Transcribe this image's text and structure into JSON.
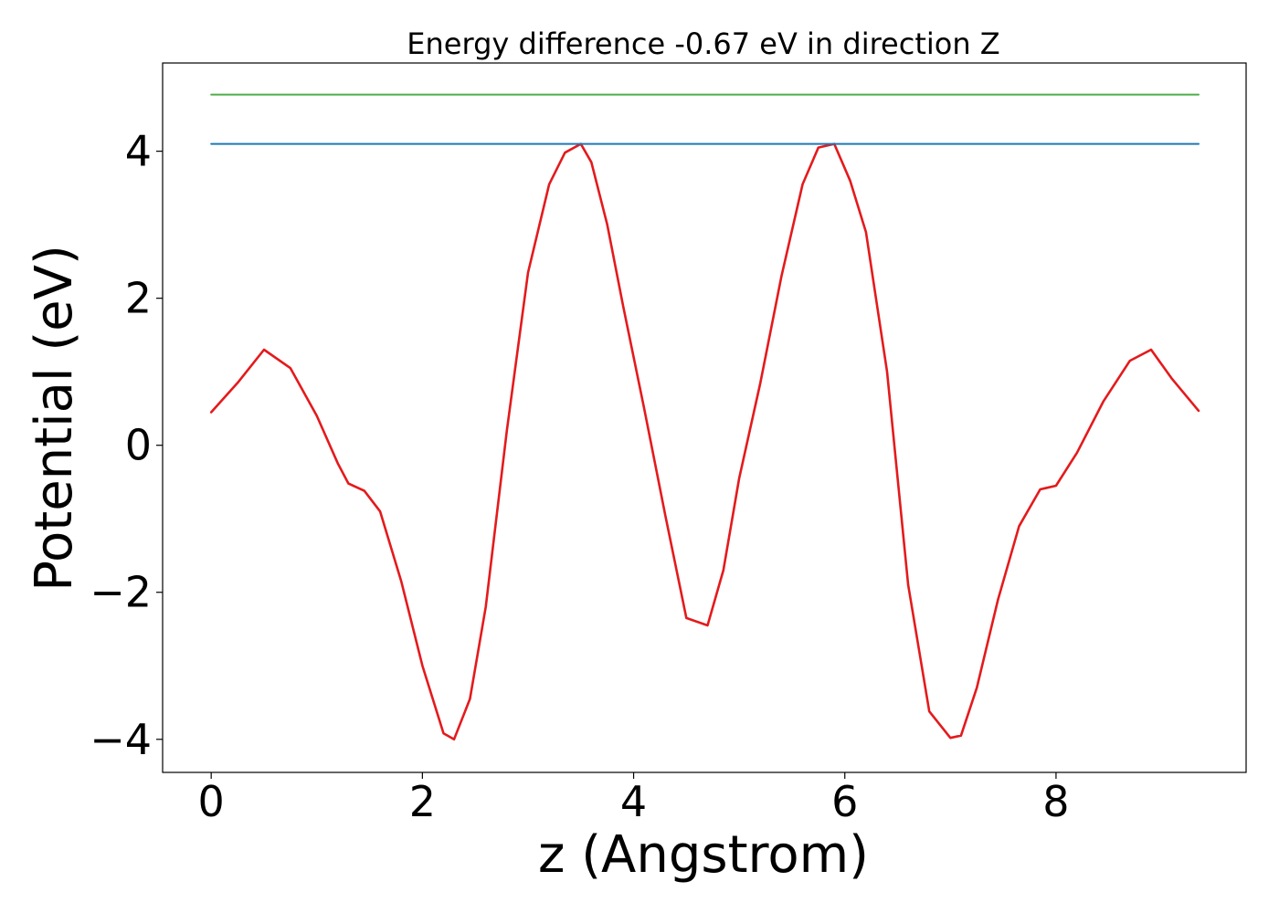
{
  "chart_data": {
    "type": "line",
    "title": "Energy difference -0.67 eV in direction Z",
    "xlabel": "z (Angstrom)",
    "ylabel": "Potential (eV)",
    "xlim": [
      -0.46,
      9.8
    ],
    "ylim": [
      -4.45,
      5.2
    ],
    "xticks": [
      0,
      2,
      4,
      6,
      8
    ],
    "xtick_labels": [
      "0",
      "2",
      "4",
      "6",
      "8"
    ],
    "yticks": [
      -4,
      -2,
      0,
      2,
      4
    ],
    "ytick_labels": [
      "−4",
      "−2",
      "0",
      "2",
      "4"
    ],
    "grid": false,
    "series": [
      {
        "color": "#e41a1c",
        "x": [
          0.0,
          0.25,
          0.5,
          0.75,
          1.0,
          1.2,
          1.3,
          1.45,
          1.6,
          1.8,
          2.0,
          2.2,
          2.3,
          2.45,
          2.6,
          2.8,
          3.0,
          3.2,
          3.35,
          3.5,
          3.6,
          3.75,
          3.9,
          4.1,
          4.3,
          4.5,
          4.7,
          4.85,
          5.0,
          5.2,
          5.4,
          5.6,
          5.75,
          5.9,
          6.05,
          6.2,
          6.4,
          6.6,
          6.8,
          7.0,
          7.1,
          7.25,
          7.45,
          7.65,
          7.85,
          8.0,
          8.2,
          8.45,
          8.7,
          8.9,
          9.1,
          9.35
        ],
        "y": [
          0.45,
          0.85,
          1.3,
          1.05,
          0.4,
          -0.25,
          -0.52,
          -0.62,
          -0.9,
          -1.85,
          -3.0,
          -3.92,
          -4.0,
          -3.45,
          -2.2,
          0.2,
          2.35,
          3.55,
          3.98,
          4.1,
          3.85,
          3.0,
          1.9,
          0.5,
          -0.95,
          -2.35,
          -2.45,
          -1.7,
          -0.45,
          0.85,
          2.3,
          3.55,
          4.05,
          4.1,
          3.6,
          2.9,
          1.0,
          -1.9,
          -3.62,
          -3.98,
          -3.95,
          -3.3,
          -2.1,
          -1.1,
          -0.6,
          -0.55,
          -0.1,
          0.6,
          1.15,
          1.3,
          0.9,
          0.47
        ]
      },
      {
        "color": "#1f77b4",
        "x": [
          0.0,
          9.35
        ],
        "y": [
          4.1,
          4.1
        ]
      },
      {
        "color": "#4daf4a",
        "x": [
          0.0,
          9.35
        ],
        "y": [
          4.77,
          4.77
        ]
      }
    ]
  }
}
